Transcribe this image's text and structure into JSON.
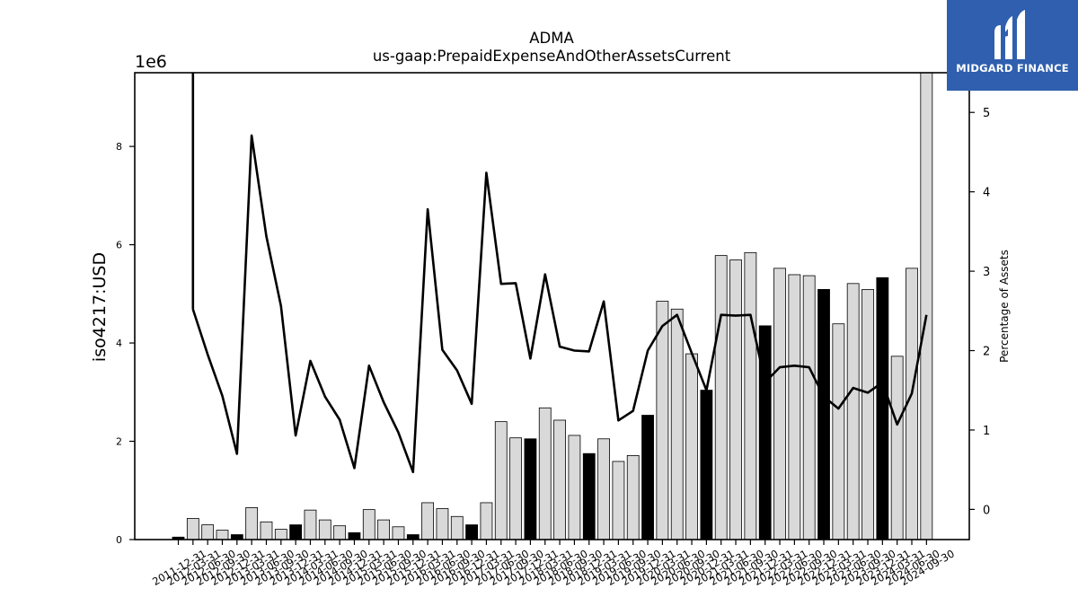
{
  "brand": {
    "name": "MIDGARD FINANCE",
    "icon": "midgard-logo-icon",
    "color": "#2f5fae"
  },
  "chart_data": {
    "type": "bar+line",
    "title": "ADMA",
    "subtitle": "us-gaap:PrepaidExpenseAndOtherAssetsCurrent",
    "ylabel": "iso4217:USD",
    "y_offset_label": "1e6",
    "y2label": "Percentage of Assets",
    "ylim": [
      0,
      9500000
    ],
    "y2lim": [
      -0.38,
      5.5
    ],
    "yticks": [
      "0",
      "2",
      "4",
      "6",
      "8"
    ],
    "y2ticks": [
      "0",
      "1",
      "2",
      "3",
      "4",
      "5"
    ],
    "grid": false,
    "categories": [
      "2011-12-31",
      "2012-03-31",
      "2012-06-30",
      "2012-09-30",
      "2012-12-31",
      "2013-03-31",
      "2013-06-30",
      "2013-09-30",
      "2013-12-31",
      "2014-03-31",
      "2014-06-30",
      "2014-09-30",
      "2014-12-31",
      "2015-03-31",
      "2015-06-30",
      "2015-09-30",
      "2015-12-31",
      "2016-03-31",
      "2016-06-30",
      "2016-09-30",
      "2016-12-31",
      "2017-03-31",
      "2017-06-30",
      "2017-09-30",
      "2017-12-31",
      "2018-03-31",
      "2018-06-30",
      "2018-09-30",
      "2018-12-31",
      "2019-03-31",
      "2019-06-30",
      "2019-09-30",
      "2019-12-31",
      "2020-03-31",
      "2020-06-30",
      "2020-09-30",
      "2020-12-31",
      "2021-03-31",
      "2021-06-30",
      "2021-09-30",
      "2021-12-31",
      "2022-03-31",
      "2022-06-30",
      "2022-09-30",
      "2022-12-31",
      "2023-03-31",
      "2023-06-30",
      "2023-09-30",
      "2023-12-31",
      "2024-03-31",
      "2024-06-30",
      "2024-09-30"
    ],
    "series": [
      {
        "type": "bar",
        "values": [
          50000,
          430000,
          300000,
          190000,
          100000,
          650000,
          360000,
          210000,
          300000,
          600000,
          400000,
          280000,
          140000,
          610000,
          400000,
          260000,
          100000,
          750000,
          630000,
          470000,
          300000,
          750000,
          2400000,
          2070000,
          2050000,
          2680000,
          2430000,
          2120000,
          1750000,
          2050000,
          1590000,
          1710000,
          2530000,
          4850000,
          4690000,
          3780000,
          3040000,
          5780000,
          5690000,
          5840000,
          4350000,
          5520000,
          5390000,
          5370000,
          5090000,
          4390000,
          5210000,
          5090000,
          5330000,
          3730000,
          5520000,
          9650000
        ],
        "highlight": [
          0,
          4,
          8,
          12,
          16,
          20,
          24,
          28,
          32,
          36,
          40,
          44,
          48
        ],
        "color": "#d9d9d9",
        "highlight_color": "#000000"
      },
      {
        "type": "line",
        "axis": "secondary",
        "color": "#000000",
        "values": [
          null,
          2.52,
          1.95,
          1.43,
          0.7,
          4.71,
          3.44,
          2.56,
          0.93,
          1.87,
          1.42,
          1.13,
          0.52,
          1.81,
          1.35,
          0.97,
          0.47,
          3.78,
          2.01,
          1.75,
          1.33,
          4.24,
          2.84,
          2.85,
          1.9,
          2.96,
          2.05,
          2.0,
          1.99,
          2.62,
          1.12,
          1.24,
          2.0,
          2.31,
          2.45,
          1.97,
          1.5,
          2.45,
          2.44,
          2.45,
          1.6,
          1.79,
          1.81,
          1.79,
          1.42,
          1.27,
          1.53,
          1.47,
          1.6,
          1.07,
          1.46,
          2.45
        ]
      }
    ]
  }
}
